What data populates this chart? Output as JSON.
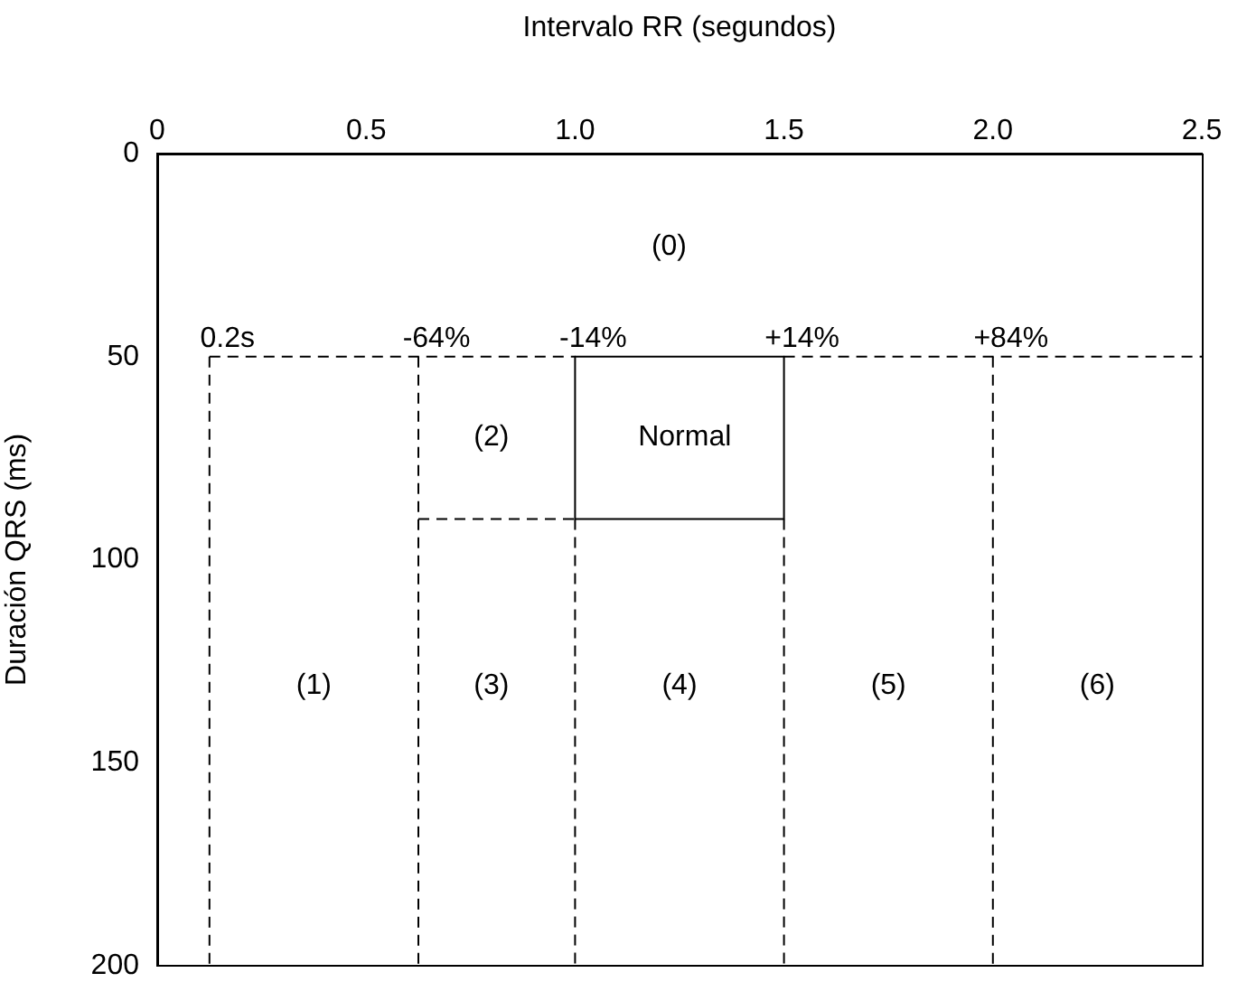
{
  "chart_data": {
    "type": "line",
    "xlabel": "Intervalo RR (segundos)",
    "ylabel": "Duración QRS (ms)",
    "xlim": [
      0,
      2.5
    ],
    "xticks": [
      0,
      0.5,
      {
        "value": 1,
        "label": "1.0"
      },
      {
        "value": 1.5,
        "label": "1.5"
      },
      {
        "value": 2,
        "label": "2.0"
      },
      2.5
    ],
    "ylim": [
      200,
      0
    ],
    "yticks": [
      0,
      50,
      100,
      150,
      200
    ],
    "grid": false,
    "legend": false,
    "marker": "none",
    "series": [
      {
        "color": "#000000",
        "line_style": "dashed",
        "x": [
          0.125,
          1
        ],
        "values": [
          50,
          50
        ]
      },
      {
        "color": "#000000",
        "line_style": "dashed",
        "x": [
          1.5,
          2.5
        ],
        "values": [
          50,
          50
        ]
      },
      {
        "color": "#000000",
        "line_style": "solid",
        "x": [
          1,
          1.5
        ],
        "values": [
          50,
          50
        ]
      },
      {
        "color": "#000000",
        "line_style": "solid",
        "x": [
          1,
          1.5
        ],
        "values": [
          90,
          90
        ]
      },
      {
        "color": "#000000",
        "line_style": "solid",
        "x": [
          1,
          1
        ],
        "values": [
          50,
          90
        ]
      },
      {
        "color": "#000000",
        "line_style": "solid",
        "x": [
          1.5,
          1.5
        ],
        "values": [
          50,
          90
        ]
      },
      {
        "color": "#000000",
        "line_style": "dashed",
        "x": [
          0.625,
          1
        ],
        "values": [
          90,
          90
        ]
      },
      {
        "color": "#000000",
        "line_style": "dashed",
        "x": [
          0.125,
          0.125
        ],
        "values": [
          50,
          200
        ]
      },
      {
        "color": "#000000",
        "line_style": "dashed",
        "x": [
          0.625,
          0.625
        ],
        "values": [
          50,
          200
        ]
      },
      {
        "color": "#000000",
        "line_style": "dashed",
        "x": [
          1,
          1
        ],
        "values": [
          90,
          200
        ]
      },
      {
        "color": "#000000",
        "line_style": "dashed",
        "x": [
          1.5,
          1.5
        ],
        "values": [
          90,
          200
        ]
      },
      {
        "color": "#000000",
        "line_style": "dashed",
        "x": [
          2,
          2
        ],
        "values": [
          50,
          200
        ]
      }
    ],
    "annotations": [
      {
        "text": "0.2s",
        "x": 0.125,
        "y": 50
      },
      {
        "text": "-64%",
        "x": 0.625,
        "y": 50
      },
      {
        "text": "-14%",
        "x": 1,
        "y": 50
      },
      {
        "text": "+14%",
        "x": 1.5,
        "y": 50
      },
      {
        "text": "+84%",
        "x": 2,
        "y": 50
      },
      "(0)",
      "(1)",
      "(2)",
      "Normal",
      "(3)",
      "(4)",
      "(5)",
      "(6)"
    ]
  }
}
